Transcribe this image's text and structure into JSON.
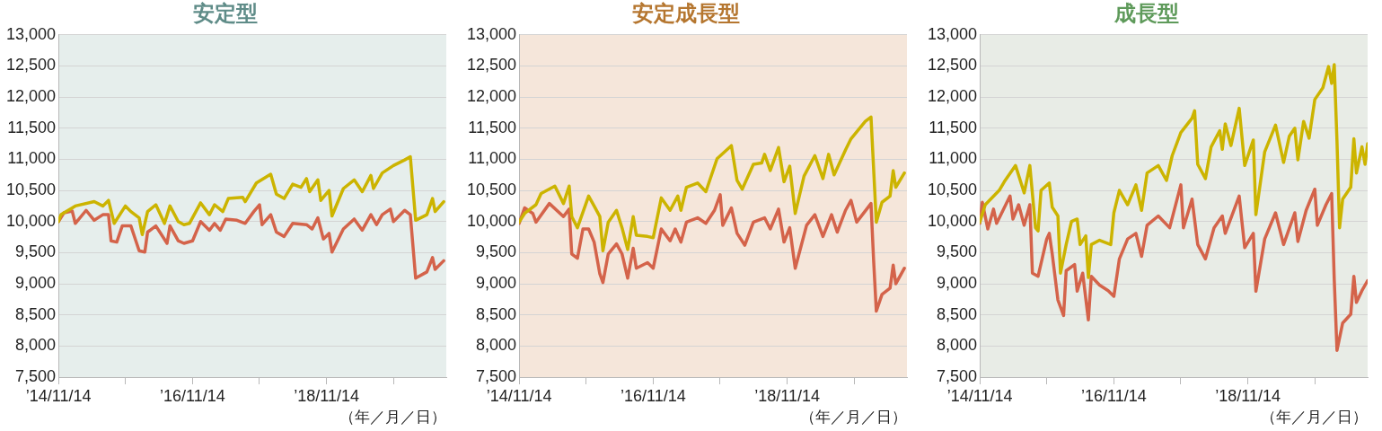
{
  "chart_data": [
    {
      "type": "line",
      "title": "安定型",
      "xlabel": "（年／月／日）",
      "legend": false,
      "grid": "y",
      "xlim": [
        "2014-11-14",
        "2020-08-28"
      ],
      "xticks": [
        {
          "value": "2014-11-14",
          "label": "’14/11/14"
        },
        {
          "value": "2015-11-14",
          "label": null
        },
        {
          "value": "2016-11-14",
          "label": "’16/11/14"
        },
        {
          "value": "2017-11-14",
          "label": null
        },
        {
          "value": "2018-11-14",
          "label": "’18/11/14"
        },
        {
          "value": "2019-11-14",
          "label": null
        }
      ],
      "ylim": [
        7500,
        13000
      ],
      "yticks": [
        {
          "value": 7500,
          "label": "7,500"
        },
        {
          "value": 8000,
          "label": "8,000"
        },
        {
          "value": 8500,
          "label": "8,500"
        },
        {
          "value": 9000,
          "label": "9,000"
        },
        {
          "value": 9500,
          "label": "9,500"
        },
        {
          "value": 10000,
          "label": "10,000"
        },
        {
          "value": 10500,
          "label": "10,500"
        },
        {
          "value": 11000,
          "label": "11,000"
        },
        {
          "value": 11500,
          "label": "11,500"
        },
        {
          "value": 12000,
          "label": "12,000"
        },
        {
          "value": 12500,
          "label": "12,500"
        },
        {
          "value": 13000,
          "label": "13,000"
        }
      ],
      "series": [
        {
          "color": "#ccb400",
          "x": [
            "2014-11-14",
            "2014-11-28",
            "2015-02-14",
            "2015-05-28",
            "2015-07-14",
            "2015-08-14",
            "2015-09-14",
            "2015-11-14",
            "2015-12-14",
            "2016-01-28",
            "2016-02-14",
            "2016-03-14",
            "2016-04-28",
            "2016-06-14",
            "2016-07-14",
            "2016-08-28",
            "2016-09-28",
            "2016-10-28",
            "2016-12-28",
            "2017-02-14",
            "2017-03-14",
            "2017-04-28",
            "2017-05-28",
            "2017-08-14",
            "2017-08-28",
            "2017-10-28",
            "2018-01-14",
            "2018-02-14",
            "2018-03-28",
            "2018-05-14",
            "2018-06-28",
            "2018-07-28",
            "2018-08-14",
            "2018-09-28",
            "2018-10-14",
            "2018-11-28",
            "2018-12-14",
            "2019-02-14",
            "2019-04-14",
            "2019-05-28",
            "2019-07-14",
            "2019-07-28",
            "2019-09-14",
            "2019-11-14",
            "2020-01-14",
            "2020-02-14",
            "2020-03-14",
            "2020-05-14",
            "2020-06-14",
            "2020-06-28",
            "2020-08-14"
          ],
          "values": [
            10000,
            10110,
            10250,
            10320,
            10250,
            10340,
            9970,
            10250,
            10160,
            10060,
            9790,
            10160,
            10270,
            9970,
            10250,
            10000,
            9950,
            9970,
            10300,
            10110,
            10270,
            10160,
            10370,
            10390,
            10320,
            10620,
            10760,
            10440,
            10370,
            10600,
            10550,
            10690,
            10480,
            10670,
            10340,
            10500,
            10090,
            10530,
            10670,
            10480,
            10740,
            10530,
            10780,
            10900,
            10990,
            11040,
            10020,
            10110,
            10370,
            10160,
            10320
          ]
        },
        {
          "color": "#d4634a",
          "x": [
            "2014-11-14",
            "2014-12-14",
            "2015-01-28",
            "2015-02-14",
            "2015-04-14",
            "2015-05-28",
            "2015-07-14",
            "2015-08-14",
            "2015-08-28",
            "2015-09-28",
            "2015-10-28",
            "2015-12-14",
            "2016-01-28",
            "2016-02-28",
            "2016-03-14",
            "2016-04-28",
            "2016-06-28",
            "2016-07-14",
            "2016-08-28",
            "2016-09-28",
            "2016-11-14",
            "2016-12-28",
            "2017-02-14",
            "2017-03-14",
            "2017-04-14",
            "2017-05-14",
            "2017-07-14",
            "2017-08-28",
            "2017-10-14",
            "2017-11-14",
            "2017-11-28",
            "2018-01-14",
            "2018-02-14",
            "2018-03-28",
            "2018-05-14",
            "2018-07-28",
            "2018-08-28",
            "2018-09-28",
            "2018-10-28",
            "2018-11-28",
            "2018-12-14",
            "2019-02-14",
            "2019-04-14",
            "2019-05-28",
            "2019-07-14",
            "2019-08-14",
            "2019-09-14",
            "2019-10-28",
            "2019-11-14",
            "2020-01-14",
            "2020-02-14",
            "2020-03-14",
            "2020-05-14",
            "2020-06-14",
            "2020-06-28",
            "2020-08-14"
          ],
          "values": [
            10000,
            10140,
            10170,
            9970,
            10180,
            10020,
            10110,
            10110,
            9690,
            9670,
            9930,
            9930,
            9530,
            9510,
            9830,
            9930,
            9650,
            9930,
            9690,
            9650,
            9690,
            10000,
            9860,
            9970,
            9860,
            10040,
            10020,
            9970,
            10160,
            10270,
            9950,
            10110,
            9830,
            9760,
            9970,
            9950,
            9880,
            10060,
            9720,
            9810,
            9510,
            9880,
            10040,
            9860,
            10110,
            9950,
            10110,
            10200,
            10000,
            10180,
            10110,
            9090,
            9190,
            9420,
            9230,
            9370
          ]
        }
      ]
    },
    {
      "type": "line",
      "title": "安定成長型",
      "xlabel": "（年／月／日）",
      "legend": false,
      "grid": "y",
      "xlim": [
        "2014-11-14",
        "2020-08-28"
      ],
      "xticks": [
        {
          "value": "2014-11-14",
          "label": "’14/11/14"
        },
        {
          "value": "2015-11-14",
          "label": null
        },
        {
          "value": "2016-11-14",
          "label": "’16/11/14"
        },
        {
          "value": "2017-11-14",
          "label": null
        },
        {
          "value": "2018-11-14",
          "label": "’18/11/14"
        },
        {
          "value": "2019-11-14",
          "label": null
        }
      ],
      "ylim": [
        7500,
        13000
      ],
      "yticks": [
        {
          "value": 7500,
          "label": "7,500"
        },
        {
          "value": 8000,
          "label": "8,000"
        },
        {
          "value": 8500,
          "label": "8,500"
        },
        {
          "value": 9000,
          "label": "9,000"
        },
        {
          "value": 9500,
          "label": "9,500"
        },
        {
          "value": 10000,
          "label": "10,000"
        },
        {
          "value": 10500,
          "label": "10,500"
        },
        {
          "value": 11000,
          "label": "11,000"
        },
        {
          "value": 11500,
          "label": "11,500"
        },
        {
          "value": 12000,
          "label": "12,000"
        },
        {
          "value": 12500,
          "label": "12,500"
        },
        {
          "value": 13000,
          "label": "13,000"
        }
      ],
      "series": [
        {
          "color": "#ccb400",
          "x": [
            "2014-11-14",
            "2014-12-14",
            "2015-02-14",
            "2015-03-14",
            "2015-05-28",
            "2015-07-14",
            "2015-08-14",
            "2015-08-28",
            "2015-09-28",
            "2015-11-28",
            "2015-12-28",
            "2016-01-28",
            "2016-02-14",
            "2016-03-14",
            "2016-04-28",
            "2016-05-28",
            "2016-06-28",
            "2016-07-28",
            "2016-08-14",
            "2016-10-14",
            "2016-11-14",
            "2016-12-28",
            "2017-02-14",
            "2017-03-28",
            "2017-04-14",
            "2017-05-14",
            "2017-07-14",
            "2017-08-28",
            "2017-10-28",
            "2018-01-14",
            "2018-02-14",
            "2018-03-14",
            "2018-05-14",
            "2018-06-28",
            "2018-07-14",
            "2018-08-14",
            "2018-09-28",
            "2018-10-28",
            "2018-11-28",
            "2018-12-28",
            "2019-02-14",
            "2019-04-14",
            "2019-05-28",
            "2019-06-28",
            "2019-07-28",
            "2019-09-28",
            "2019-10-28",
            "2020-01-14",
            "2020-02-14",
            "2020-03-14",
            "2020-04-14",
            "2020-05-28",
            "2020-06-14",
            "2020-06-28",
            "2020-08-14"
          ],
          "values": [
            9990,
            10130,
            10270,
            10450,
            10570,
            10290,
            10570,
            10080,
            9900,
            10410,
            10250,
            10080,
            9530,
            9990,
            10180,
            9900,
            9550,
            10080,
            9780,
            9760,
            9740,
            10380,
            10180,
            10410,
            10180,
            10550,
            10620,
            10480,
            11010,
            11220,
            10660,
            10520,
            10920,
            10940,
            11080,
            10820,
            11190,
            10640,
            10890,
            10130,
            10730,
            11060,
            10690,
            11080,
            10750,
            11150,
            11330,
            11610,
            11680,
            9990,
            10310,
            10410,
            10820,
            10550,
            10780
          ]
        },
        {
          "color": "#d4634a",
          "x": [
            "2014-11-14",
            "2014-12-14",
            "2015-01-28",
            "2015-02-14",
            "2015-04-28",
            "2015-07-14",
            "2015-08-14",
            "2015-08-28",
            "2015-09-28",
            "2015-10-28",
            "2015-11-28",
            "2015-12-28",
            "2016-01-28",
            "2016-02-14",
            "2016-03-14",
            "2016-04-28",
            "2016-05-28",
            "2016-06-28",
            "2016-07-28",
            "2016-08-14",
            "2016-10-14",
            "2016-11-14",
            "2016-12-28",
            "2017-02-14",
            "2017-03-14",
            "2017-04-14",
            "2017-05-14",
            "2017-07-14",
            "2017-08-28",
            "2017-10-14",
            "2017-11-14",
            "2017-11-28",
            "2018-01-14",
            "2018-02-14",
            "2018-03-28",
            "2018-05-14",
            "2018-07-14",
            "2018-08-14",
            "2018-09-28",
            "2018-10-28",
            "2018-11-28",
            "2018-12-28",
            "2019-02-28",
            "2019-04-14",
            "2019-05-28",
            "2019-07-14",
            "2019-08-14",
            "2019-09-28",
            "2019-10-28",
            "2019-11-28",
            "2020-02-14",
            "2020-02-28",
            "2020-03-14",
            "2020-04-14",
            "2020-05-28",
            "2020-06-14",
            "2020-06-28",
            "2020-08-14"
          ],
          "values": [
            9970,
            10220,
            10130,
            9990,
            10290,
            10080,
            10200,
            9480,
            9410,
            9880,
            9880,
            9670,
            9160,
            9020,
            9480,
            9640,
            9480,
            9090,
            9570,
            9250,
            9340,
            9250,
            9880,
            9690,
            9880,
            9670,
            9990,
            10060,
            9970,
            10180,
            10430,
            9940,
            10220,
            9810,
            9620,
            9990,
            10060,
            9880,
            10200,
            9670,
            9900,
            9250,
            9940,
            10110,
            9760,
            10110,
            9830,
            10180,
            10340,
            9990,
            10290,
            9390,
            8560,
            8830,
            8930,
            9300,
            9000,
            9250
          ]
        }
      ]
    },
    {
      "type": "line",
      "title": "成長型",
      "xlabel": "（年／月／日）",
      "legend": false,
      "grid": "y",
      "xlim": [
        "2014-11-14",
        "2020-08-28"
      ],
      "xticks": [
        {
          "value": "2014-11-14",
          "label": "’14/11/14"
        },
        {
          "value": "2015-11-14",
          "label": null
        },
        {
          "value": "2016-11-14",
          "label": "’16/11/14"
        },
        {
          "value": "2017-11-14",
          "label": null
        },
        {
          "value": "2018-11-14",
          "label": "’18/11/14"
        },
        {
          "value": "2019-11-14",
          "label": null
        }
      ],
      "ylim": [
        7500,
        13000
      ],
      "yticks": [
        {
          "value": 7500,
          "label": "7,500"
        },
        {
          "value": 8000,
          "label": "8,000"
        },
        {
          "value": 8500,
          "label": "8,500"
        },
        {
          "value": 9000,
          "label": "9,000"
        },
        {
          "value": 9500,
          "label": "9,500"
        },
        {
          "value": 10000,
          "label": "10,000"
        },
        {
          "value": 10500,
          "label": "10,500"
        },
        {
          "value": 11000,
          "label": "11,000"
        },
        {
          "value": 11500,
          "label": "11,500"
        },
        {
          "value": 12000,
          "label": "12,000"
        },
        {
          "value": 12500,
          "label": "12,500"
        },
        {
          "value": 13000,
          "label": "13,000"
        }
      ],
      "series": [
        {
          "color": "#ccb400",
          "x": [
            "2014-11-14",
            "2014-12-14",
            "2015-02-28",
            "2015-03-28",
            "2015-05-28",
            "2015-07-14",
            "2015-08-14",
            "2015-09-14",
            "2015-09-28",
            "2015-10-14",
            "2015-11-28",
            "2015-12-14",
            "2016-01-14",
            "2016-01-28",
            "2016-02-28",
            "2016-03-28",
            "2016-04-28",
            "2016-05-14",
            "2016-06-14",
            "2016-06-28",
            "2016-07-14",
            "2016-08-28",
            "2016-10-28",
            "2016-11-14",
            "2016-12-14",
            "2017-01-28",
            "2017-03-14",
            "2017-04-14",
            "2017-05-14",
            "2017-07-14",
            "2017-08-28",
            "2017-09-28",
            "2017-11-14",
            "2018-01-14",
            "2018-01-28",
            "2018-02-14",
            "2018-03-28",
            "2018-04-28",
            "2018-06-14",
            "2018-06-28",
            "2018-07-14",
            "2018-08-14",
            "2018-09-28",
            "2018-10-28",
            "2018-12-14",
            "2018-12-28",
            "2019-02-14",
            "2019-04-14",
            "2019-05-28",
            "2019-06-28",
            "2019-07-28",
            "2019-08-14",
            "2019-09-14",
            "2019-10-14",
            "2019-11-14",
            "2019-12-28",
            "2020-01-28",
            "2020-02-14",
            "2020-02-28",
            "2020-03-14",
            "2020-03-28",
            "2020-04-14",
            "2020-05-28",
            "2020-06-14",
            "2020-06-28",
            "2020-07-28",
            "2020-08-14",
            "2020-08-28"
          ],
          "values": [
            9990,
            10270,
            10500,
            10640,
            10900,
            10460,
            10900,
            9900,
            9850,
            10500,
            10620,
            10230,
            10090,
            9170,
            9630,
            10000,
            10040,
            9630,
            9770,
            9100,
            9630,
            9700,
            9630,
            10140,
            10500,
            10270,
            10590,
            10180,
            10780,
            10900,
            10660,
            11060,
            11430,
            11660,
            11780,
            10920,
            10690,
            11200,
            11460,
            11160,
            11570,
            11220,
            11820,
            10900,
            11310,
            10110,
            11120,
            11550,
            10950,
            11370,
            11500,
            10990,
            11610,
            11340,
            11960,
            12150,
            12490,
            12220,
            12520,
            11290,
            9900,
            10360,
            10550,
            11330,
            10780,
            11200,
            10920,
            11250
          ]
        },
        {
          "color": "#d4634a",
          "x": [
            "2014-11-14",
            "2014-11-28",
            "2014-12-28",
            "2015-01-28",
            "2015-02-14",
            "2015-04-28",
            "2015-05-14",
            "2015-06-14",
            "2015-07-14",
            "2015-08-14",
            "2015-08-28",
            "2015-09-28",
            "2015-11-14",
            "2015-11-28",
            "2015-12-14",
            "2016-01-14",
            "2016-02-14",
            "2016-02-28",
            "2016-04-14",
            "2016-04-28",
            "2016-05-28",
            "2016-06-28",
            "2016-07-14",
            "2016-08-28",
            "2016-10-14",
            "2016-11-14",
            "2016-12-14",
            "2017-01-28",
            "2017-03-14",
            "2017-04-14",
            "2017-05-14",
            "2017-07-14",
            "2017-09-14",
            "2017-11-14",
            "2017-11-28",
            "2018-01-14",
            "2018-02-14",
            "2018-03-28",
            "2018-05-14",
            "2018-06-28",
            "2018-07-14",
            "2018-09-28",
            "2018-10-28",
            "2018-12-14",
            "2018-12-28",
            "2019-02-14",
            "2019-04-14",
            "2019-05-28",
            "2019-07-28",
            "2019-08-14",
            "2019-09-28",
            "2019-11-14",
            "2019-11-28",
            "2020-01-14",
            "2020-02-14",
            "2020-02-28",
            "2020-03-14",
            "2020-04-14",
            "2020-05-28",
            "2020-06-14",
            "2020-06-28",
            "2020-07-28",
            "2020-08-28"
          ],
          "values": [
            9970,
            10310,
            9880,
            10200,
            9970,
            10410,
            10040,
            10270,
            9940,
            10270,
            9170,
            9120,
            9720,
            9810,
            9480,
            8740,
            8490,
            9210,
            9310,
            8880,
            9170,
            8420,
            9120,
            8980,
            8890,
            8800,
            9400,
            9720,
            9810,
            9440,
            9940,
            10090,
            9900,
            10590,
            9900,
            10360,
            9630,
            9400,
            9900,
            10090,
            9810,
            10410,
            9580,
            9810,
            8880,
            9720,
            10140,
            9630,
            10140,
            9680,
            10180,
            10520,
            9940,
            10270,
            10450,
            9070,
            7930,
            8370,
            8510,
            9120,
            8700,
            8890,
            9050
          ]
        }
      ]
    }
  ]
}
